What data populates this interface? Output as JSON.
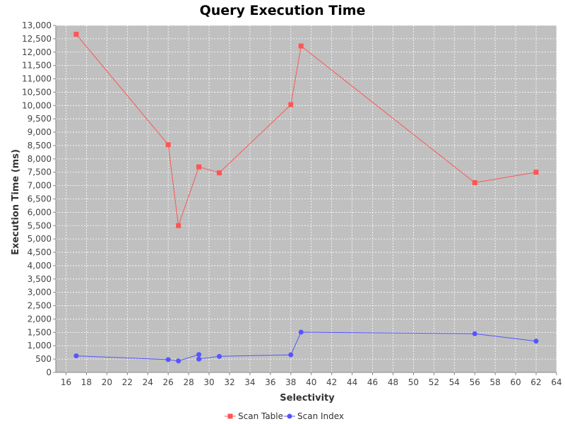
{
  "chart_data": {
    "type": "line",
    "title": "Query Execution Time",
    "xlabel": "Selectivity",
    "ylabel": "Execution Time (ms)",
    "xlim": [
      15,
      64
    ],
    "ylim": [
      0,
      13000
    ],
    "x_ticks": [
      16,
      18,
      20,
      22,
      24,
      26,
      28,
      30,
      32,
      34,
      36,
      38,
      40,
      42,
      44,
      46,
      48,
      50,
      52,
      54,
      56,
      58,
      60,
      62,
      64
    ],
    "y_ticks": [
      0,
      500,
      1000,
      1500,
      2000,
      2500,
      3000,
      3500,
      4000,
      4500,
      5000,
      5500,
      6000,
      6500,
      7000,
      7500,
      8000,
      8500,
      9000,
      9500,
      10000,
      10500,
      11000,
      11500,
      12000,
      12500,
      13000
    ],
    "y_tick_labels": [
      "0",
      "500",
      "1,000",
      "1,500",
      "2,000",
      "2,500",
      "3,000",
      "3,500",
      "4,000",
      "4,500",
      "5,000",
      "5,500",
      "6,000",
      "6,500",
      "7,000",
      "7,500",
      "8,000",
      "8,500",
      "9,000",
      "9,500",
      "10,000",
      "10,500",
      "11,000",
      "11,500",
      "12,000",
      "12,500",
      "13,000"
    ],
    "grid": true,
    "legend_position": "bottom",
    "plot_background": "#c0c0c0",
    "series": [
      {
        "name": "Scan Table",
        "marker": "square",
        "color": "#ff5555",
        "points": [
          [
            17,
            12670
          ],
          [
            26,
            8530
          ],
          [
            27,
            5500
          ],
          [
            29,
            7700
          ],
          [
            31,
            7480
          ],
          [
            38,
            10030
          ],
          [
            39,
            12230
          ],
          [
            56,
            7110
          ],
          [
            62,
            7500
          ]
        ]
      },
      {
        "name": "Scan Index",
        "marker": "circle",
        "color": "#5555ff",
        "points": [
          [
            17,
            620
          ],
          [
            26,
            480
          ],
          [
            27,
            430
          ],
          [
            29,
            670
          ],
          [
            29,
            500
          ],
          [
            31,
            600
          ],
          [
            38,
            660
          ],
          [
            39,
            1510
          ],
          [
            56,
            1450
          ],
          [
            62,
            1170
          ]
        ]
      }
    ]
  }
}
